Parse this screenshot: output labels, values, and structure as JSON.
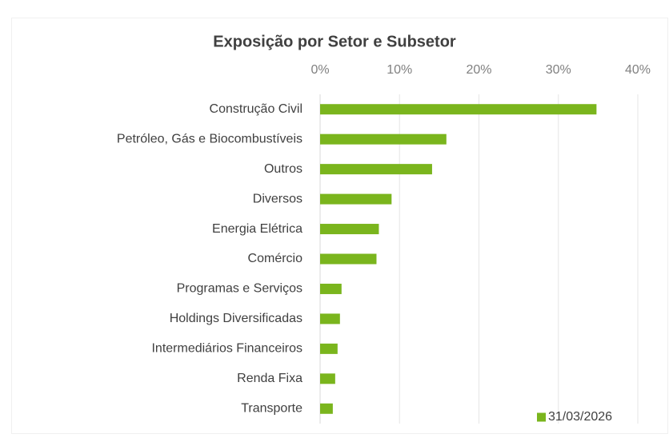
{
  "chart_data": {
    "type": "bar",
    "orientation": "horizontal",
    "title": "Exposição por Setor e Subsetor",
    "categories": [
      "Construção Civil",
      "Petróleo, Gás e Biocombustíveis",
      "Outros",
      "Diversos",
      "Energia Elétrica",
      "Comércio",
      "Programas e Serviços",
      "Holdings Diversificadas",
      "Intermediários Financeiros",
      "Renda Fixa",
      "Transporte"
    ],
    "series": [
      {
        "name": "31/03/2026",
        "color": "#7ab51d",
        "values": [
          34.8,
          15.9,
          14.1,
          9.0,
          7.4,
          7.1,
          2.7,
          2.5,
          2.2,
          1.9,
          1.6
        ]
      }
    ],
    "xlim": [
      0,
      40
    ],
    "xticks": [
      {
        "value": 0,
        "label": "0%"
      },
      {
        "value": 10,
        "label": "10%"
      },
      {
        "value": 20,
        "label": "20%"
      },
      {
        "value": 30,
        "label": "30%"
      },
      {
        "value": 40,
        "label": "40%"
      }
    ],
    "grid": true,
    "legend": "lower right"
  }
}
